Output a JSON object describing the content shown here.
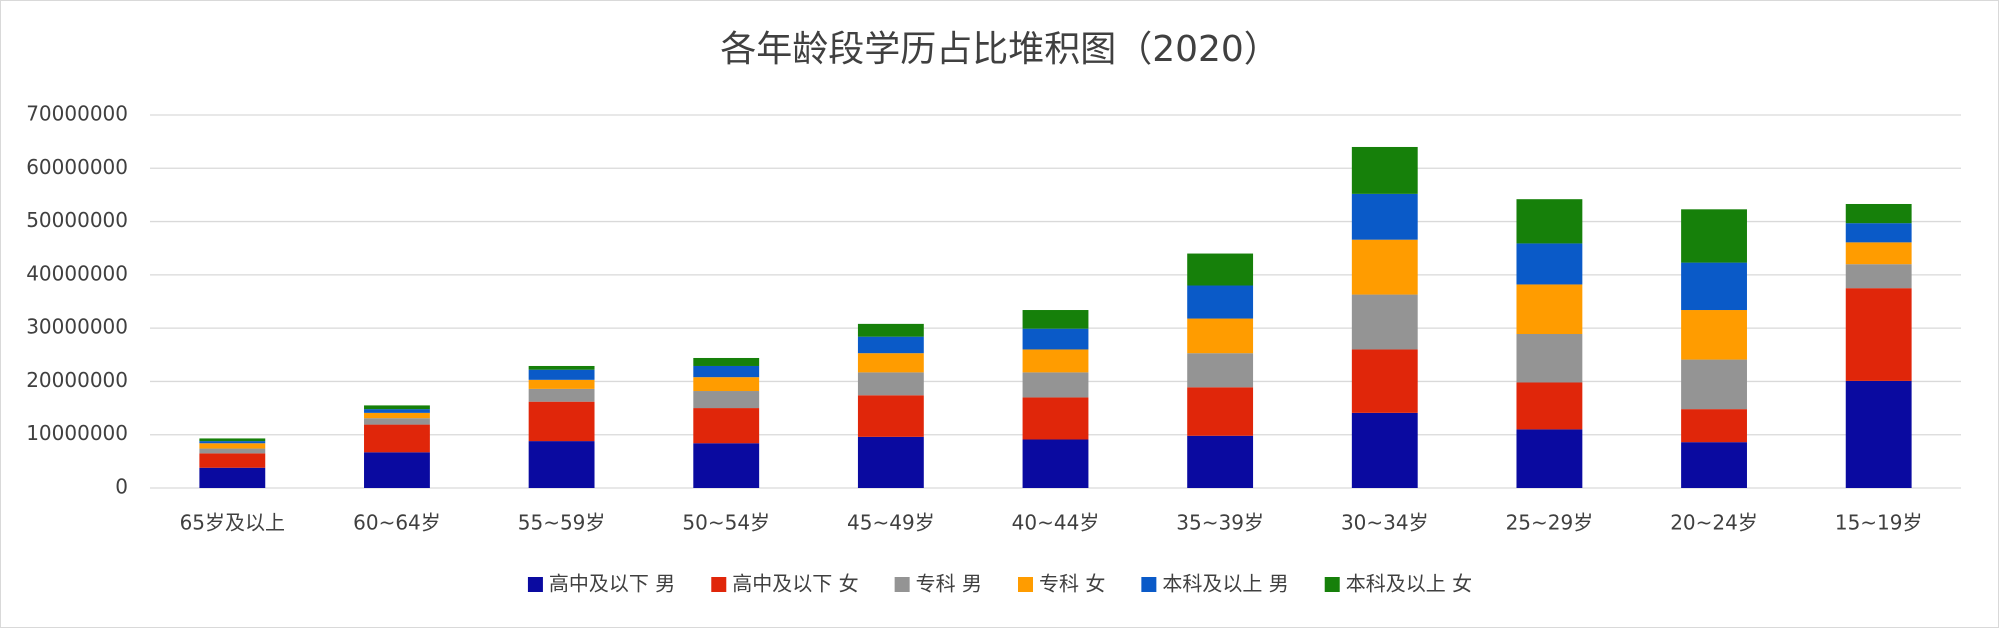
{
  "chart_data": {
    "type": "bar",
    "stacked": true,
    "title": "各年龄段学历占比堆积图（2020）",
    "categories": [
      "65岁及以上",
      "60~64岁",
      "55~59岁",
      "50~54岁",
      "45~49岁",
      "40~44岁",
      "35~39岁",
      "30~34岁",
      "25~29岁",
      "20~24岁",
      "15~19岁"
    ],
    "series": [
      {
        "name": "高中及以下 男",
        "color": "#0a0aa0",
        "values": [
          3800000,
          6700000,
          8800000,
          8400000,
          9600000,
          9100000,
          9800000,
          14100000,
          11000000,
          8600000,
          20100000
        ]
      },
      {
        "name": "高中及以下 女",
        "color": "#e0260a",
        "values": [
          2700000,
          5200000,
          7400000,
          6600000,
          7800000,
          7900000,
          9100000,
          11900000,
          8800000,
          6200000,
          17400000
        ]
      },
      {
        "name": "专科 男",
        "color": "#949494",
        "values": [
          900000,
          1200000,
          2400000,
          3200000,
          4300000,
          4700000,
          6400000,
          10300000,
          9100000,
          9300000,
          4500000
        ]
      },
      {
        "name": "专科 女",
        "color": "#ff9c00",
        "values": [
          1000000,
          1000000,
          1700000,
          2600000,
          3600000,
          4300000,
          6500000,
          10300000,
          9300000,
          9300000,
          4100000
        ]
      },
      {
        "name": "本科及以上 男",
        "color": "#0a5ac8",
        "values": [
          400000,
          700000,
          1900000,
          2100000,
          3100000,
          3900000,
          6200000,
          8600000,
          7700000,
          8900000,
          3600000
        ]
      },
      {
        "name": "本科及以上 女",
        "color": "#16800a",
        "values": [
          500000,
          700000,
          700000,
          1500000,
          2400000,
          3500000,
          6000000,
          8800000,
          8300000,
          10000000,
          3600000
        ]
      }
    ],
    "ylim": [
      0,
      70000000
    ],
    "yticks": [
      0,
      10000000,
      20000000,
      30000000,
      40000000,
      50000000,
      60000000,
      70000000
    ],
    "grid": true,
    "legend": "bottom"
  }
}
